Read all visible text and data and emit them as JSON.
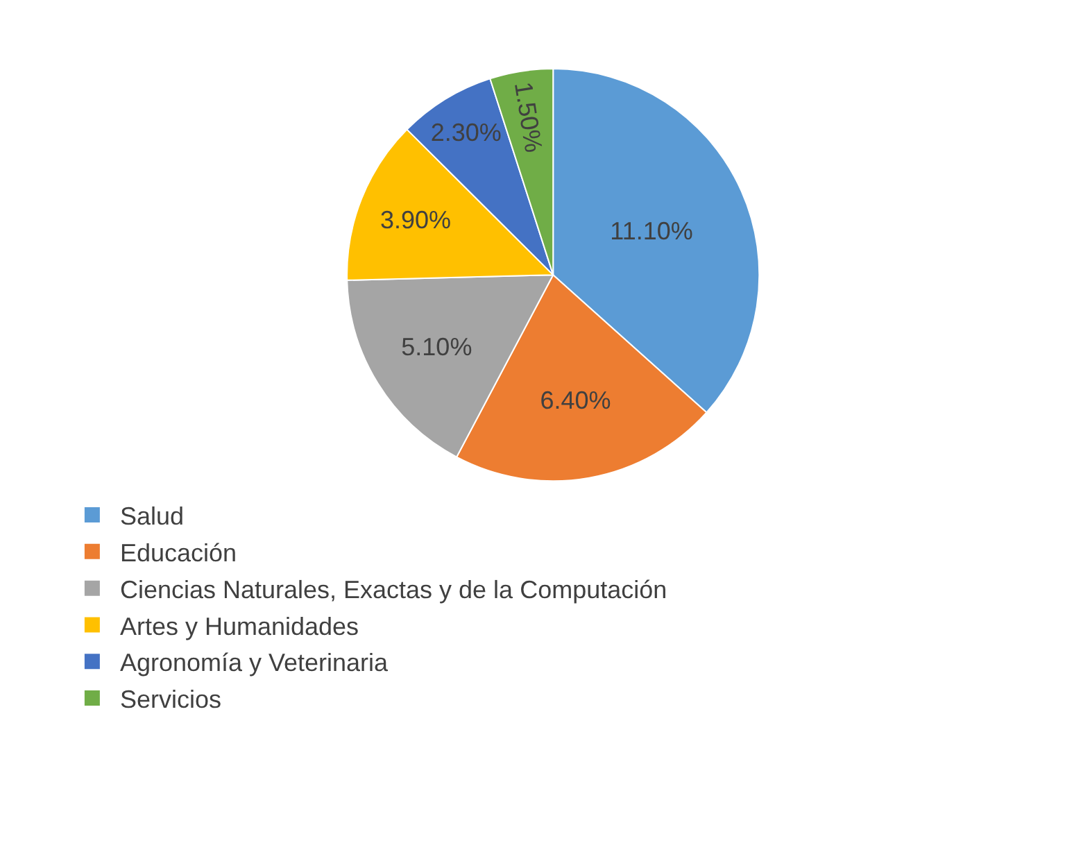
{
  "chart_data": {
    "type": "pie",
    "categories": [
      "Salud",
      "Educación",
      "Ciencias Naturales, Exactas y de la Computación",
      "Artes y Humanidades",
      "Agronomía y Veterinaria",
      "Servicios"
    ],
    "values": [
      11.1,
      6.4,
      5.1,
      3.9,
      2.3,
      1.5
    ],
    "colors": [
      "#5b9bd5",
      "#ed7d31",
      "#a5a5a5",
      "#ffc000",
      "#4472c4",
      "#70ad47"
    ],
    "value_labels": [
      "11.10%",
      "6.40%",
      "5.10%",
      "3.90%",
      "2.30%",
      "1.50%"
    ],
    "legend": "bottom left"
  }
}
